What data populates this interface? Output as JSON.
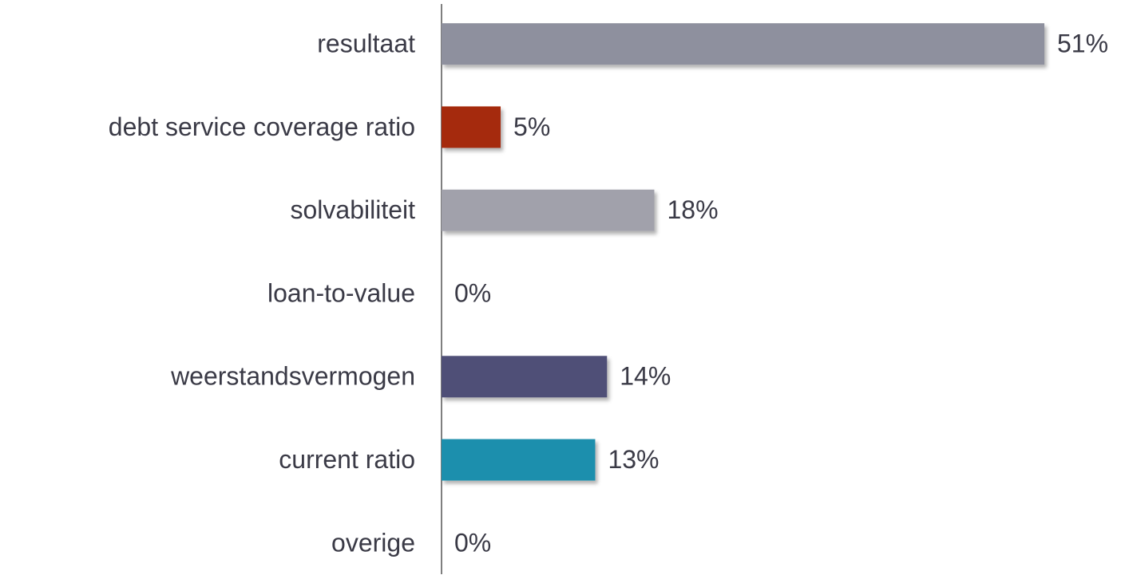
{
  "chart_data": {
    "type": "bar",
    "orientation": "horizontal",
    "categories": [
      "resultaat",
      "debt service coverage ratio",
      "solvabiliteit",
      "loan-to-value",
      "weerstandsvermogen",
      "current ratio",
      "overige"
    ],
    "values": [
      51,
      5,
      18,
      0,
      14,
      13,
      0
    ],
    "value_labels": [
      "51%",
      "5%",
      "18%",
      "0%",
      "14%",
      "13%",
      "0%"
    ],
    "colors": [
      "#8e909e",
      "#a52a0a",
      "#a1a1ab",
      null,
      "#4f4f77",
      "#1f8fad",
      null
    ]
  }
}
